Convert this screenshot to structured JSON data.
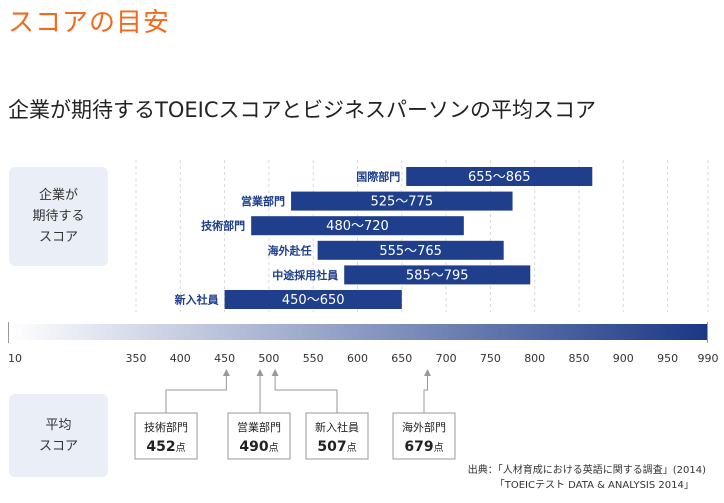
{
  "header": {
    "headline": "スコアの目安"
  },
  "chart_data": {
    "type": "bar",
    "title": "企業が期待するTOEICスコアとビジネスパーソンの平均スコア",
    "ticks": [
      10,
      350,
      400,
      450,
      500,
      550,
      600,
      650,
      700,
      750,
      800,
      850,
      900,
      950,
      990
    ],
    "expected_label": [
      "企業が",
      "期待する",
      "スコア"
    ],
    "average_label": [
      "平均",
      "スコア"
    ],
    "ranges": [
      {
        "category": "国際部門",
        "min": 655,
        "max": 865,
        "label": "655〜865"
      },
      {
        "category": "営業部門",
        "min": 525,
        "max": 775,
        "label": "525〜775"
      },
      {
        "category": "技術部門",
        "min": 480,
        "max": 720,
        "label": "480〜720"
      },
      {
        "category": "海外赴任",
        "min": 555,
        "max": 765,
        "label": "555〜765"
      },
      {
        "category": "中途採用社員",
        "min": 585,
        "max": 795,
        "label": "585〜795"
      },
      {
        "category": "新入社員",
        "min": 450,
        "max": 650,
        "label": "450〜650"
      }
    ],
    "averages": [
      {
        "category": "技術部門",
        "score": 452,
        "value_text": "452",
        "unit": "点"
      },
      {
        "category": "営業部門",
        "score": 490,
        "value_text": "490",
        "unit": "点"
      },
      {
        "category": "新入社員",
        "score": 507,
        "value_text": "507",
        "unit": "点"
      },
      {
        "category": "海外部門",
        "score": 679,
        "value_text": "679",
        "unit": "点"
      }
    ]
  },
  "source": {
    "line1": "出典：「人材育成における英語に関する調査」(2014)",
    "line2": "「TOEICテスト DATA & ANALYSIS 2014」"
  },
  "colors": {
    "headline": "#f26b1d",
    "bar": "#1f3f8c",
    "category_text": "#1f3f8c",
    "gradient_start": "#ffffff",
    "gradient_end": "#1a3786",
    "side_box": "#e9eef7",
    "grid": "#d9d9d9",
    "connector": "#999999"
  }
}
